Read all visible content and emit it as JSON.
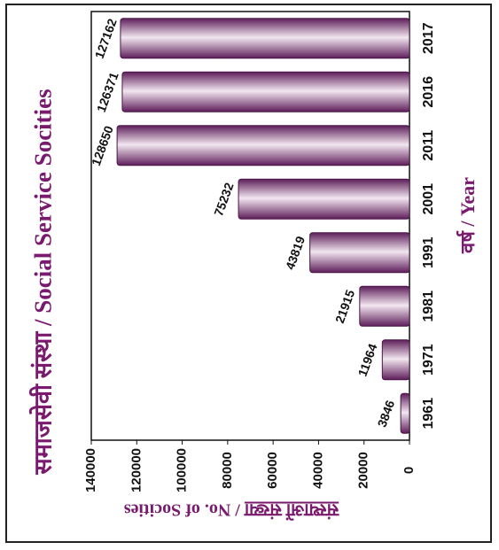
{
  "chart_data": {
    "type": "bar",
    "orientation": "horizontal",
    "title": "समाजसेवी संस्था / Social Service Socities",
    "ylabel_prefix": "संस्थाओं संख्या",
    "ylabel_suffix": " / No. of Socities",
    "xlabel": "वर्ष / Year",
    "categories": [
      "1961",
      "1971",
      "1981",
      "1991",
      "2001",
      "2011",
      "2016",
      "2017"
    ],
    "values": [
      3846,
      11964,
      21915,
      43819,
      75232,
      128650,
      126371,
      127162
    ],
    "value_labels": [
      "3846",
      "11964",
      "21915",
      "43819",
      "75232",
      "128650",
      "126371",
      "127162"
    ],
    "ylim": [
      0,
      140000
    ],
    "yticks": [
      "0",
      "20000",
      "40000",
      "60000",
      "80000",
      "100000",
      "120000",
      "140000"
    ],
    "grid": false,
    "colors": {
      "bar_dark": "#5e1e5a",
      "bar_light": "#f2e6f0",
      "text_accent": "#7a1a6e"
    }
  }
}
